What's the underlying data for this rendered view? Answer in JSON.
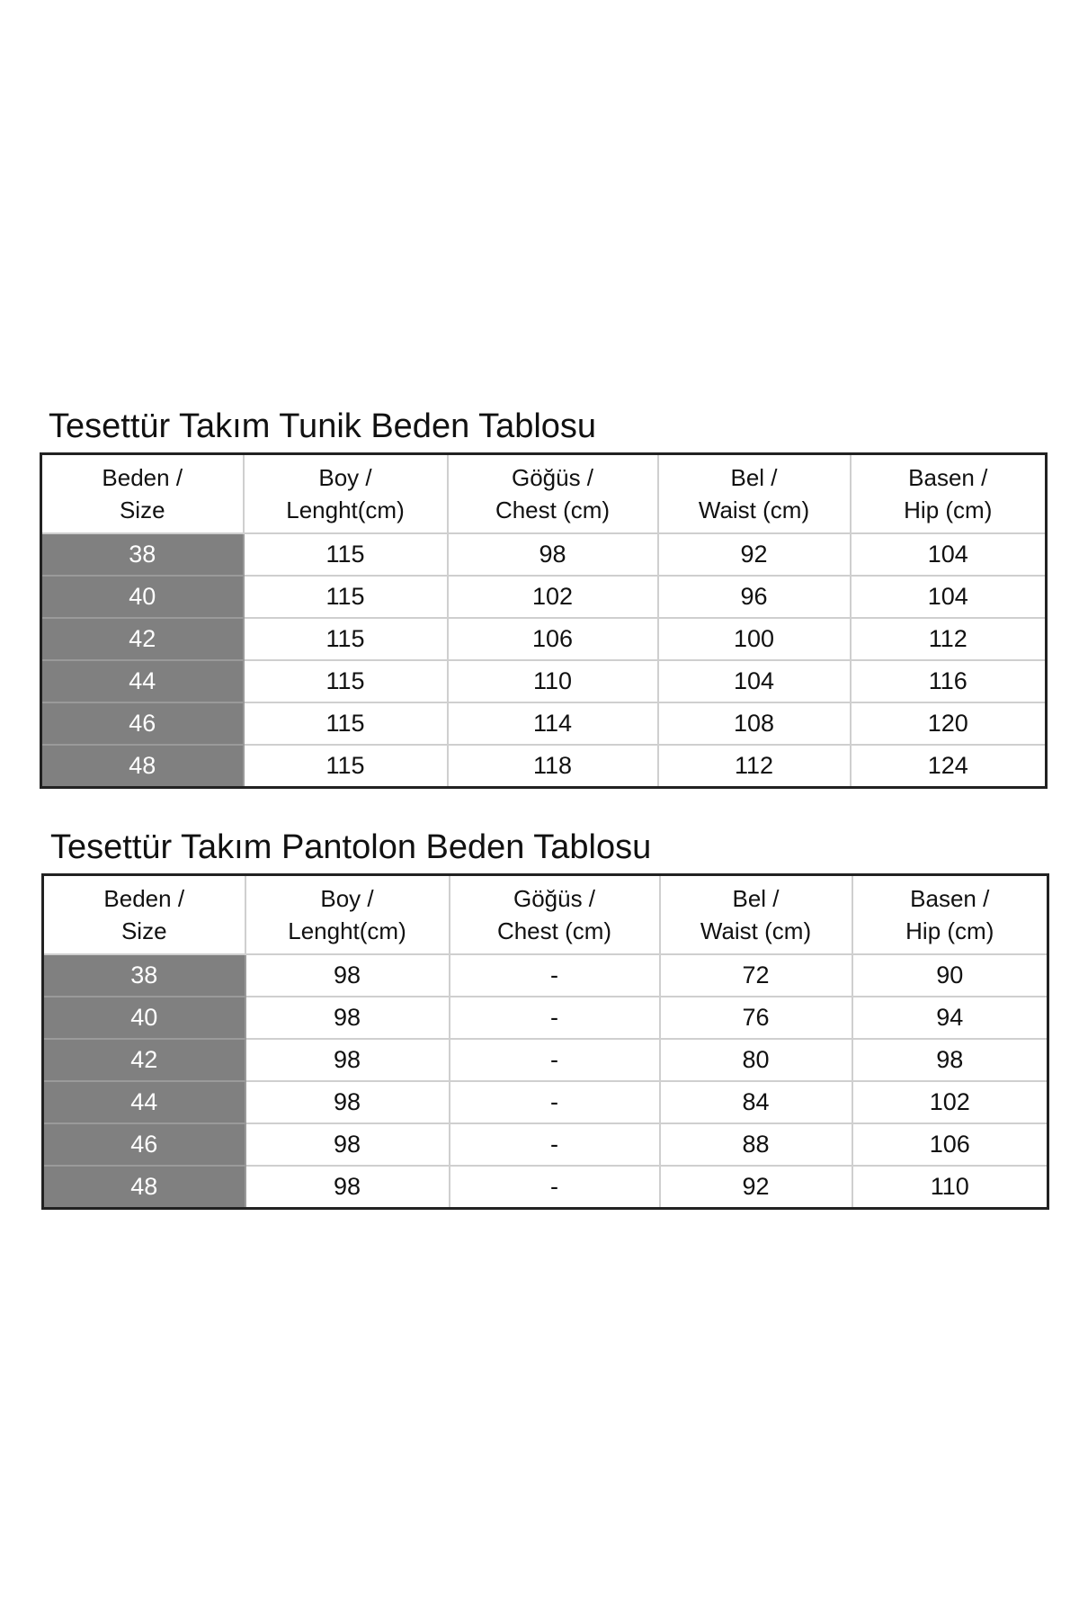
{
  "tables": [
    {
      "title": "Tesettür Takım Tunik Beden Tablosu",
      "headers": [
        {
          "line1": "Beden /",
          "line2": "Size"
        },
        {
          "line1": "Boy /",
          "line2": "Lenght(cm)"
        },
        {
          "line1": "Göğüs /",
          "line2": "Chest (cm)"
        },
        {
          "line1": "Bel /",
          "line2": "Waist (cm)"
        },
        {
          "line1": "Basen /",
          "line2": "Hip (cm)"
        }
      ],
      "rows": [
        [
          "38",
          "115",
          "98",
          "92",
          "104"
        ],
        [
          "40",
          "115",
          "102",
          "96",
          "104"
        ],
        [
          "42",
          "115",
          "106",
          "100",
          "112"
        ],
        [
          "44",
          "115",
          "110",
          "104",
          "116"
        ],
        [
          "46",
          "115",
          "114",
          "108",
          "120"
        ],
        [
          "48",
          "115",
          "118",
          "112",
          "124"
        ]
      ]
    },
    {
      "title": "Tesettür Takım Pantolon Beden Tablosu",
      "headers": [
        {
          "line1": "Beden /",
          "line2": "Size"
        },
        {
          "line1": "Boy /",
          "line2": "Lenght(cm)"
        },
        {
          "line1": "Göğüs /",
          "line2": "Chest (cm)"
        },
        {
          "line1": "Bel /",
          "line2": "Waist (cm)"
        },
        {
          "line1": "Basen /",
          "line2": "Hip (cm)"
        }
      ],
      "rows": [
        [
          "38",
          "98",
          "-",
          "72",
          "90"
        ],
        [
          "40",
          "98",
          "-",
          "76",
          "94"
        ],
        [
          "42",
          "98",
          "-",
          "80",
          "98"
        ],
        [
          "44",
          "98",
          "-",
          "84",
          "102"
        ],
        [
          "46",
          "98",
          "-",
          "88",
          "106"
        ],
        [
          "48",
          "98",
          "-",
          "92",
          "110"
        ]
      ]
    }
  ],
  "colors": {
    "size_column": "#808080",
    "border": "#222222"
  }
}
